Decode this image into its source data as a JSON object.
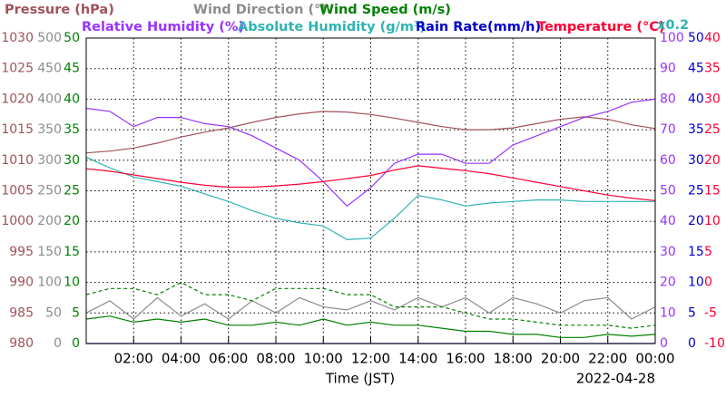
{
  "chart_data": {
    "type": "line",
    "x_label": "Time (JST)",
    "date": "2022-04-28",
    "x": [
      0,
      1,
      2,
      3,
      4,
      5,
      6,
      7,
      8,
      9,
      10,
      11,
      12,
      13,
      14,
      15,
      16,
      17,
      18,
      19,
      20,
      21,
      22,
      23,
      24
    ],
    "xlim": [
      0,
      24
    ],
    "xticks": [
      {
        "value": 2,
        "label": "02:00"
      },
      {
        "value": 4,
        "label": "04:00"
      },
      {
        "value": 6,
        "label": "06:00"
      },
      {
        "value": 8,
        "label": "08:00"
      },
      {
        "value": 10,
        "label": "10:00"
      },
      {
        "value": 12,
        "label": "12:00"
      },
      {
        "value": 14,
        "label": "14:00"
      },
      {
        "value": 16,
        "label": "16:00"
      },
      {
        "value": 18,
        "label": "18:00"
      },
      {
        "value": 20,
        "label": "20:00"
      },
      {
        "value": 22,
        "label": "22:00"
      },
      {
        "value": 24,
        "label": "00:00"
      }
    ],
    "grid": true,
    "axes": [
      {
        "label": "Pressure (hPa)",
        "color": "#a0525a",
        "ylim": [
          980,
          1030
        ],
        "yticks": [
          980,
          985,
          990,
          995,
          1000,
          1005,
          1010,
          1015,
          1020,
          1025,
          1030
        ]
      },
      {
        "label": "Wind Direction (°)",
        "color": "#8c8c8c",
        "ylim": [
          0,
          500
        ],
        "yticks": [
          0,
          50,
          100,
          150,
          200,
          250,
          300,
          350,
          400,
          450,
          500
        ]
      },
      {
        "label": "Wind Speed (m/s)",
        "color": "#008000",
        "ylim": [
          0,
          50
        ],
        "yticks": [
          0,
          5,
          10,
          15,
          20,
          25,
          30,
          35,
          40,
          45,
          50
        ]
      },
      {
        "label": "Relative Humidity (%)",
        "color": "#9933ff",
        "ylim": [
          0,
          100
        ],
        "yticks": [
          0,
          10,
          20,
          30,
          40,
          50,
          60,
          70,
          80,
          90,
          100
        ]
      },
      {
        "label": "Absolute Humidity (g/m³)",
        "color": "#2fb3b3",
        "ylim": [
          0,
          20
        ],
        "scale_label": "x0.2"
      },
      {
        "label": "Rain Rate(mm/h)",
        "color": "#0000cc",
        "ylim": [
          0,
          50
        ],
        "yticks": [
          0,
          5,
          10,
          15,
          20,
          25,
          30,
          35,
          40,
          45,
          50
        ]
      },
      {
        "label": "Temperature (°C)",
        "color": "#ff0033",
        "ylim": [
          -10,
          40
        ],
        "yticks": [
          -10,
          -5,
          0,
          5,
          10,
          15,
          20,
          25,
          30,
          35,
          40
        ]
      }
    ],
    "series": [
      {
        "axis": 0,
        "color": "#a0525a",
        "values": [
          1011.2,
          1011.5,
          1012.0,
          1012.8,
          1013.8,
          1014.6,
          1015.3,
          1016.2,
          1017.0,
          1017.6,
          1018.0,
          1017.9,
          1017.5,
          1016.9,
          1016.2,
          1015.5,
          1015.0,
          1015.0,
          1015.3,
          1016.0,
          1016.7,
          1017.1,
          1016.7,
          1015.8,
          1015.2
        ]
      },
      {
        "axis": 1,
        "color": "#8c8c8c",
        "values": [
          50,
          70,
          40,
          75,
          45,
          65,
          40,
          70,
          50,
          75,
          60,
          55,
          70,
          55,
          75,
          60,
          75,
          50,
          75,
          65,
          50,
          70,
          75,
          40,
          60
        ]
      },
      {
        "axis": 2,
        "color": "#008000",
        "values": [
          4,
          4.5,
          3.5,
          4,
          3.5,
          4,
          3,
          3,
          3.5,
          3,
          4,
          3,
          3.5,
          3,
          3,
          2.5,
          2,
          2,
          1.5,
          1.5,
          1,
          1,
          1.5,
          1.2,
          1.5
        ],
        "max_values": [
          8,
          9,
          9,
          8,
          10,
          8,
          8,
          7,
          9,
          9,
          9,
          8,
          8,
          6,
          6,
          6,
          5,
          4,
          4,
          3.5,
          3,
          3,
          3,
          2.5,
          3
        ]
      },
      {
        "axis": 3,
        "color": "#9933ff",
        "values": [
          77,
          76,
          71,
          74,
          74,
          72,
          71,
          68,
          64,
          60,
          53,
          45,
          51,
          59,
          62,
          62,
          59,
          59,
          65,
          68,
          71,
          74,
          76,
          79,
          80
        ]
      },
      {
        "axis": 4,
        "color": "#2fb3b3",
        "values": [
          12.2,
          11.5,
          10.9,
          10.6,
          10.3,
          9.8,
          9.3,
          8.7,
          8.2,
          7.9,
          7.7,
          6.8,
          6.9,
          8.2,
          9.7,
          9.4,
          9.0,
          9.2,
          9.3,
          9.4,
          9.4,
          9.3,
          9.3,
          9.3,
          9.3
        ]
      },
      {
        "axis": 5,
        "color": "#0000cc",
        "values": [
          0,
          0,
          0,
          0,
          0,
          0,
          0,
          0,
          0,
          0,
          0,
          0,
          0,
          0,
          0,
          0,
          0,
          0,
          0,
          0,
          0,
          0,
          0,
          0,
          0
        ]
      },
      {
        "axis": 6,
        "color": "#ff0033",
        "values": [
          18.6,
          18.2,
          17.6,
          17.0,
          16.4,
          15.9,
          15.6,
          15.6,
          15.8,
          16.1,
          16.5,
          17.0,
          17.5,
          18.4,
          19.1,
          18.7,
          18.3,
          17.8,
          17.1,
          16.4,
          15.7,
          15.0,
          14.3,
          13.8,
          13.4
        ]
      }
    ]
  }
}
